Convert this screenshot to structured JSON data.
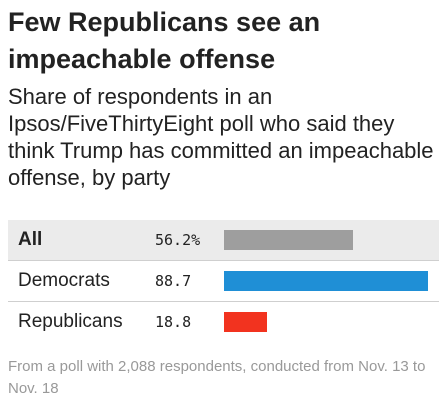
{
  "title": "Few Republicans see an impeachable offense",
  "subtitle": "Share of respondents in an Ipsos/FiveThirtyEight poll who said they think Trump has committed an impeachable offense, by party",
  "footnote": "From a poll with 2,088 respondents, conducted from Nov. 13 to Nov. 18",
  "chart_data": {
    "type": "bar",
    "orientation": "horizontal",
    "categories": [
      "All",
      "Democrats",
      "Republicans"
    ],
    "values": [
      56.2,
      88.7,
      18.8
    ],
    "value_labels": [
      "56.2%",
      "88.7",
      "18.8"
    ],
    "colors": [
      "#9e9e9e",
      "#1f8fd6",
      "#f2331f"
    ],
    "xlim": [
      0,
      88.7
    ],
    "title": "Few Republicans see an impeachable offense",
    "xlabel": "",
    "ylabel": "",
    "grid": false,
    "legend": "none"
  }
}
